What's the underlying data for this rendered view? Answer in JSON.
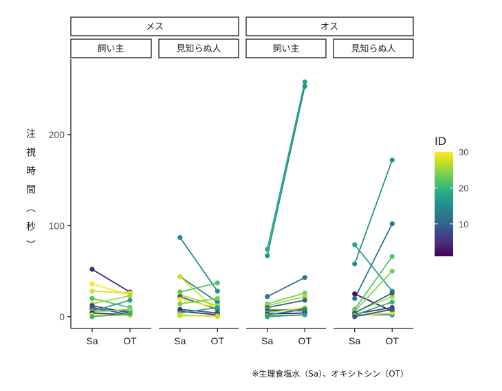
{
  "chart_data": {
    "type": "line",
    "ylabel": "注視時間（秒）",
    "y_ticks": [
      0,
      100,
      200
    ],
    "ylim": [
      -13,
      283
    ],
    "x_categories": [
      "Sa",
      "OT"
    ],
    "sex_groups": [
      {
        "label": "メス",
        "panels": [
          0,
          1
        ]
      },
      {
        "label": "オス",
        "panels": [
          2,
          3
        ]
      }
    ],
    "panels": [
      {
        "label": "飼い主",
        "pairs": [
          {
            "id": 4,
            "sa": 52,
            "ot": 27
          },
          {
            "id": 30,
            "sa": 36,
            "ot": 24
          },
          {
            "id": 28,
            "sa": 28,
            "ot": 26
          },
          {
            "id": 22,
            "sa": 20,
            "ot": 10
          },
          {
            "id": 26,
            "sa": 14,
            "ot": 23
          },
          {
            "id": 6,
            "sa": 12,
            "ot": 4
          },
          {
            "id": 8,
            "sa": 10,
            "ot": 2
          },
          {
            "id": 12,
            "sa": 8,
            "ot": 6
          },
          {
            "id": 18,
            "sa": 6,
            "ot": 18
          },
          {
            "id": 25,
            "sa": 5,
            "ot": 8
          },
          {
            "id": 3,
            "sa": 4,
            "ot": 2
          },
          {
            "id": 29,
            "sa": 2,
            "ot": 1
          },
          {
            "id": 20,
            "sa": 0,
            "ot": 3
          }
        ]
      },
      {
        "label": "見知らぬ人",
        "pairs": [
          {
            "id": 15,
            "sa": 87,
            "ot": 28
          },
          {
            "id": 14,
            "sa": 44,
            "ot": 16
          },
          {
            "id": 28,
            "sa": 44,
            "ot": 6
          },
          {
            "id": 22,
            "sa": 27,
            "ot": 37
          },
          {
            "id": 26,
            "sa": 24,
            "ot": 12
          },
          {
            "id": 10,
            "sa": 22,
            "ot": 8
          },
          {
            "id": 30,
            "sa": 19,
            "ot": 10
          },
          {
            "id": 24,
            "sa": 14,
            "ot": 20
          },
          {
            "id": 8,
            "sa": 8,
            "ot": 4
          },
          {
            "id": 4,
            "sa": 6,
            "ot": 2
          },
          {
            "id": 18,
            "sa": 4,
            "ot": 10
          },
          {
            "id": 29,
            "sa": 2,
            "ot": 0
          },
          {
            "id": 27,
            "sa": 1,
            "ot": 1
          }
        ]
      },
      {
        "label": "飼い主",
        "pairs": [
          {
            "id": 18,
            "sa": 74,
            "ot": 258
          },
          {
            "id": 16,
            "sa": 67,
            "ot": 253
          },
          {
            "id": 12,
            "sa": 22,
            "ot": 43
          },
          {
            "id": 24,
            "sa": 14,
            "ot": 26
          },
          {
            "id": 26,
            "sa": 12,
            "ot": 22
          },
          {
            "id": 10,
            "sa": 10,
            "ot": 18
          },
          {
            "id": 20,
            "sa": 8,
            "ot": 6
          },
          {
            "id": 6,
            "sa": 6,
            "ot": 9
          },
          {
            "id": 28,
            "sa": 4,
            "ot": 10
          },
          {
            "id": 3,
            "sa": 3,
            "ot": 4
          },
          {
            "id": 14,
            "sa": 2,
            "ot": 8
          },
          {
            "id": 22,
            "sa": 1,
            "ot": 2
          },
          {
            "id": 18,
            "sa": 0,
            "ot": 2
          }
        ]
      },
      {
        "label": "見知らぬ人",
        "pairs": [
          {
            "id": 18,
            "sa": 79,
            "ot": 28
          },
          {
            "id": 16,
            "sa": 58,
            "ot": 172
          },
          {
            "id": 12,
            "sa": 20,
            "ot": 102
          },
          {
            "id": 2,
            "sa": 25,
            "ot": 6
          },
          {
            "id": 22,
            "sa": 8,
            "ot": 66
          },
          {
            "id": 24,
            "sa": 6,
            "ot": 50
          },
          {
            "id": 26,
            "sa": 5,
            "ot": 22
          },
          {
            "id": 10,
            "sa": 4,
            "ot": 26
          },
          {
            "id": 6,
            "sa": 3,
            "ot": 10
          },
          {
            "id": 20,
            "sa": 2,
            "ot": 16
          },
          {
            "id": 14,
            "sa": 2,
            "ot": 2
          },
          {
            "id": 28,
            "sa": 1,
            "ot": 4
          },
          {
            "id": 8,
            "sa": 0,
            "ot": 8
          }
        ]
      }
    ],
    "legend": {
      "title": "ID",
      "ticks": [
        10,
        20,
        30
      ],
      "range": [
        1,
        30
      ],
      "position": "right",
      "colormap": "viridis"
    },
    "grid": false
  },
  "caption": "※生理食塩水（Sa）、オキシトシン（OT）",
  "colors": {
    "strip_border": "#1a1a1a",
    "axis": "#1a1a1a",
    "viridis": [
      "#440154",
      "#482878",
      "#3e4989",
      "#31688e",
      "#26828e",
      "#1f9e89",
      "#35b779",
      "#6ece58",
      "#b5de2b",
      "#fde725"
    ]
  }
}
